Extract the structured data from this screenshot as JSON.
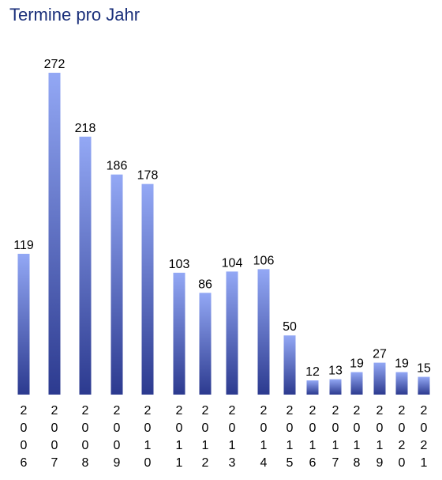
{
  "chart_data": {
    "type": "bar",
    "title": "Termine pro Jahr",
    "xlabel": "",
    "ylabel": "",
    "categories": [
      "2006",
      "2007",
      "2008",
      "2009",
      "2010",
      "2011",
      "2012",
      "2013",
      "2014",
      "2015",
      "2016",
      "2017",
      "2018",
      "2019",
      "2020",
      "2021"
    ],
    "values": [
      119,
      272,
      218,
      186,
      178,
      103,
      86,
      104,
      106,
      50,
      12,
      13,
      19,
      27,
      19,
      15
    ],
    "ylim": [
      0,
      272
    ],
    "grid": false,
    "legend": "none",
    "colors": {
      "bar_top": "#93a8f5",
      "bar_bottom": "#2c3a8f",
      "title": "#1a2f7a"
    }
  }
}
